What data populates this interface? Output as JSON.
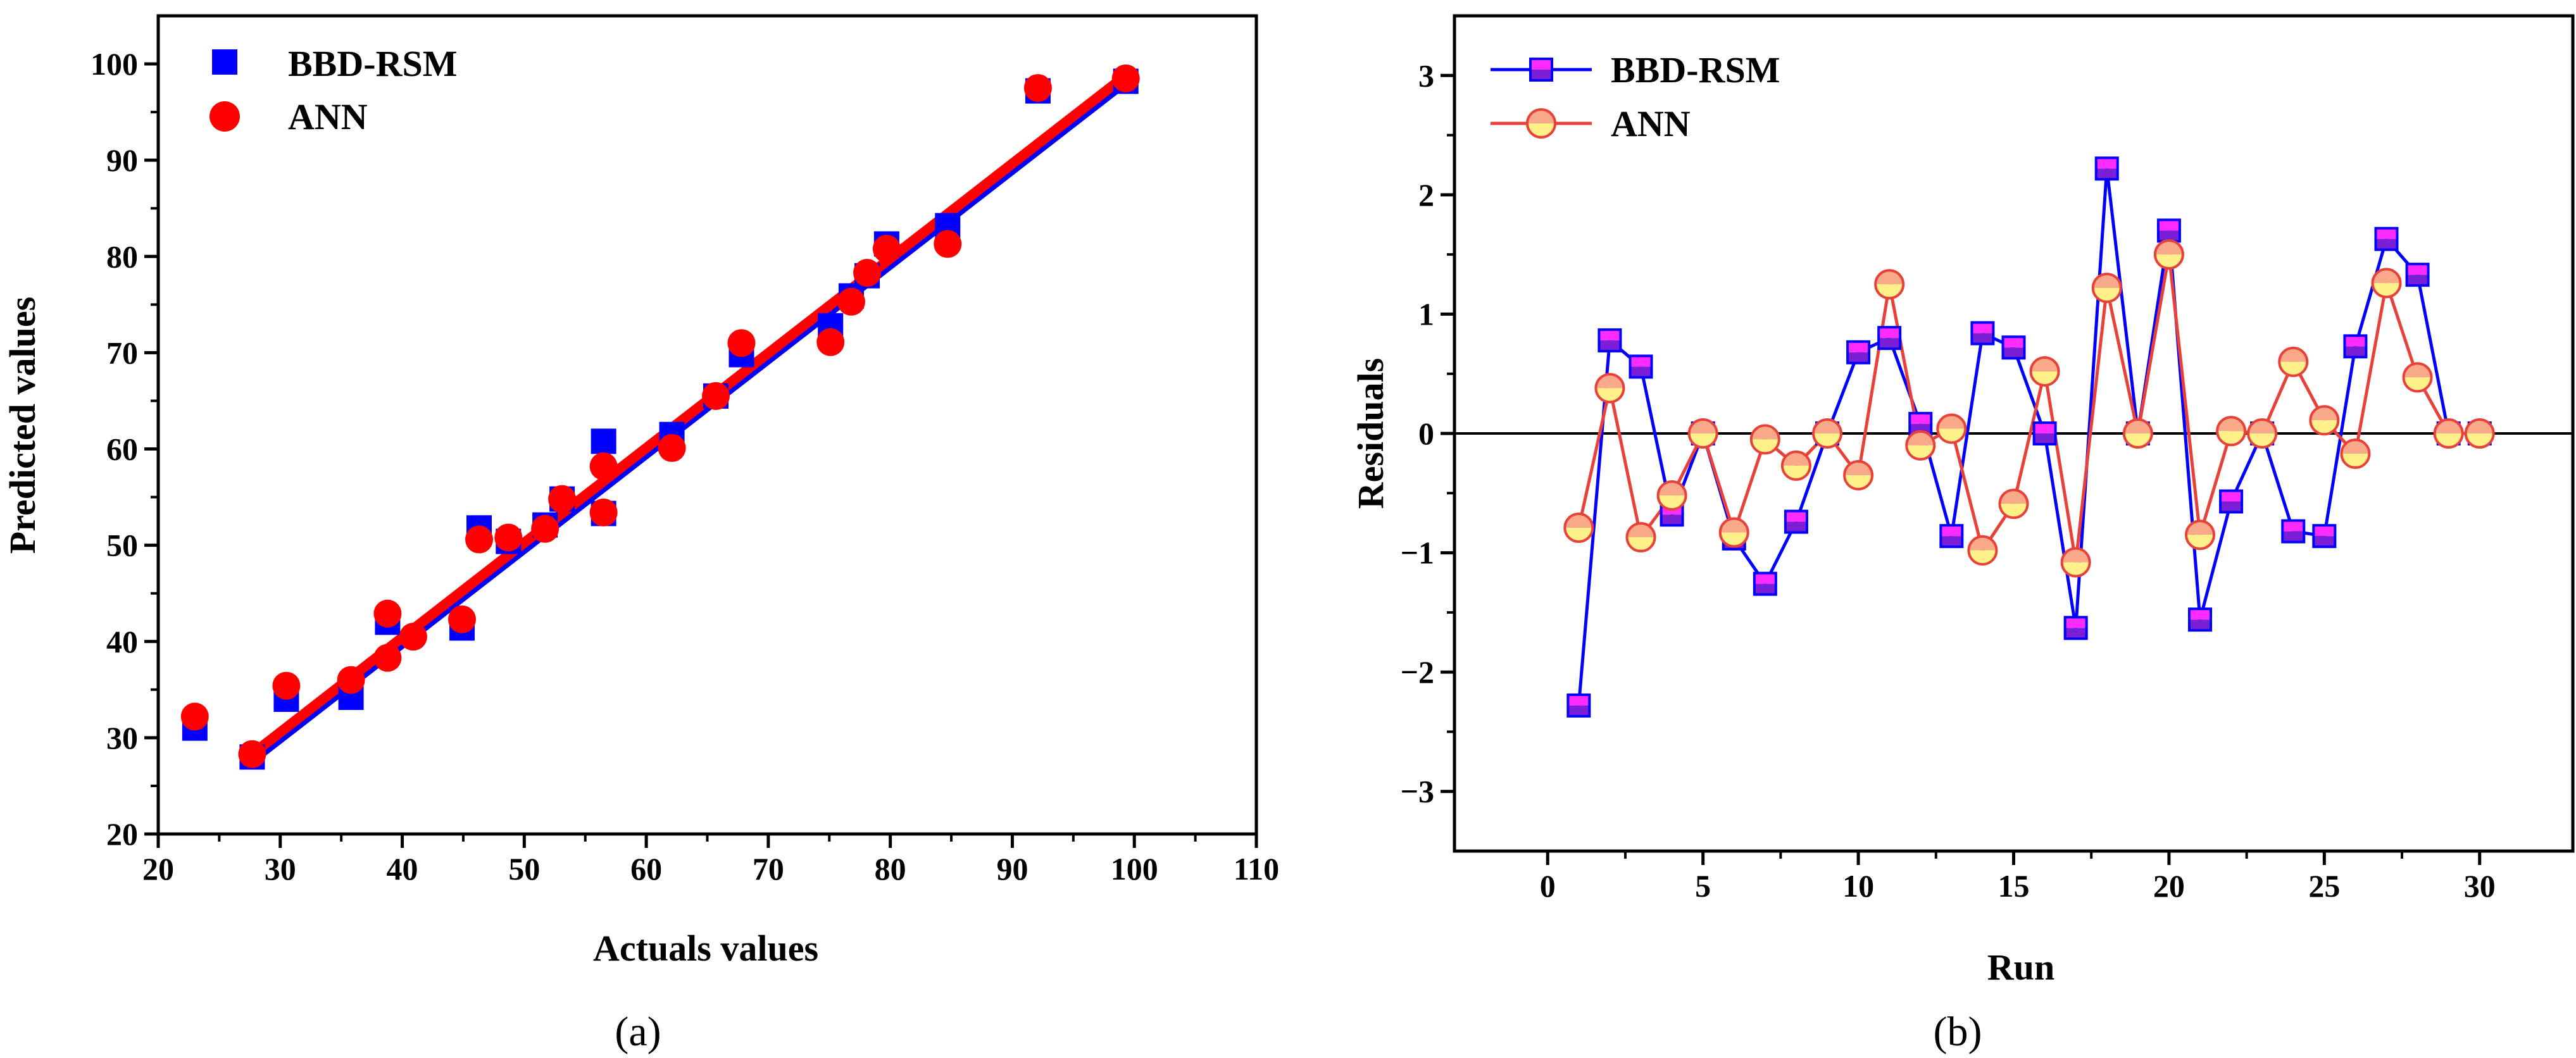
{
  "colors": {
    "bbd": "#0000ff",
    "ann": "#ff0000",
    "bbd_fill_top": "#ff2bff",
    "bbd_fill_bottom": "#7a1fd6",
    "ann_fill_top": "#f7a98a",
    "ann_fill_bottom": "#fff08a",
    "ann_line": "#e8413a"
  },
  "chart_data": [
    {
      "type": "scatter",
      "panel_label": "(a)",
      "xlabel": "Actuals values",
      "ylabel": "Predicted values",
      "xlim": [
        20,
        110
      ],
      "ylim": [
        20,
        105
      ],
      "xticks": [
        20,
        30,
        40,
        50,
        60,
        70,
        80,
        90,
        100,
        110
      ],
      "yticks": [
        20,
        30,
        40,
        50,
        60,
        70,
        80,
        90,
        100
      ],
      "xtick_labels": [
        "20",
        "30",
        "40",
        "50",
        "60",
        "70",
        "80",
        "90",
        "100",
        "110"
      ],
      "ytick_labels": [
        "20",
        "30",
        "40",
        "50",
        "60",
        "70",
        "80",
        "90",
        "100"
      ],
      "legend_position": "top-left",
      "series": [
        {
          "name": "BBD-RSM",
          "marker": "square",
          "points": [
            [
              23,
              31
            ],
            [
              27.7,
              28
            ],
            [
              30.5,
              34
            ],
            [
              35.8,
              34.2
            ],
            [
              38.8,
              42
            ],
            [
              44.9,
              41.4
            ],
            [
              46.3,
              51.8
            ],
            [
              48.7,
              50.4
            ],
            [
              51.7,
              52.1
            ],
            [
              53.1,
              54.8
            ],
            [
              56.5,
              53.3
            ],
            [
              56.5,
              60.8
            ],
            [
              62.1,
              61.5
            ],
            [
              65.7,
              65.5
            ],
            [
              67.8,
              69.8
            ],
            [
              75.1,
              72.8
            ],
            [
              76.8,
              75.9
            ],
            [
              78.1,
              78
            ],
            [
              79.7,
              81.3
            ],
            [
              84.7,
              83.2
            ],
            [
              92.1,
              97.2
            ],
            [
              99.3,
              98.2
            ]
          ],
          "fit": [
            [
              27.7,
              27.7
            ],
            [
              99.3,
              98.2
            ]
          ]
        },
        {
          "name": "ANN",
          "marker": "circle",
          "points": [
            [
              23,
              32.2
            ],
            [
              27.7,
              28.3
            ],
            [
              30.5,
              35.4
            ],
            [
              35.8,
              36
            ],
            [
              38.8,
              38.3
            ],
            [
              38.8,
              42.9
            ],
            [
              40.9,
              40.5
            ],
            [
              44.9,
              42.3
            ],
            [
              46.3,
              50.6
            ],
            [
              48.7,
              50.8
            ],
            [
              51.7,
              51.7
            ],
            [
              53.1,
              54.8
            ],
            [
              56.5,
              53.4
            ],
            [
              56.5,
              58.2
            ],
            [
              62.1,
              60.1
            ],
            [
              65.7,
              65.5
            ],
            [
              67.8,
              71
            ],
            [
              75.1,
              71.1
            ],
            [
              76.8,
              75.3
            ],
            [
              78.1,
              78.3
            ],
            [
              79.7,
              80.8
            ],
            [
              84.7,
              81.3
            ],
            [
              92.1,
              97.5
            ],
            [
              99.3,
              98.5
            ]
          ],
          "fit": [
            [
              27.7,
              28.3
            ],
            [
              99.3,
              98.8
            ]
          ]
        }
      ]
    },
    {
      "type": "line",
      "panel_label": "(b)",
      "xlabel": "Run",
      "ylabel": "Residuals",
      "xlim": [
        -3,
        33
      ],
      "ylim": [
        -3.5,
        3.5
      ],
      "xticks": [
        0,
        5,
        10,
        15,
        20,
        25,
        30
      ],
      "yticks": [
        -3,
        -2,
        -1,
        0,
        1,
        2,
        3
      ],
      "xtick_labels": [
        "0",
        "5",
        "10",
        "15",
        "20",
        "25",
        "30"
      ],
      "ytick_labels": [
        "−3",
        "−2",
        "−1",
        "0",
        "1",
        "2",
        "3"
      ],
      "zero_line": true,
      "legend_position": "top-left",
      "x": [
        1,
        2,
        3,
        4,
        5,
        6,
        7,
        8,
        9,
        10,
        11,
        12,
        13,
        14,
        15,
        16,
        17,
        18,
        19,
        20,
        21,
        22,
        23,
        24,
        25,
        26,
        27,
        28,
        29,
        30
      ],
      "series": [
        {
          "name": "BBD-RSM",
          "marker": "square",
          "values": [
            -2.28,
            0.78,
            0.56,
            -0.68,
            0,
            -0.88,
            -1.26,
            -0.74,
            0,
            0.68,
            0.8,
            0.08,
            -0.86,
            0.84,
            0.72,
            0,
            -1.63,
            2.22,
            0,
            1.7,
            -1.56,
            -0.57,
            0,
            -0.82,
            -0.86,
            0.73,
            1.63,
            1.33,
            0,
            0
          ]
        },
        {
          "name": "ANN",
          "marker": "circle",
          "values": [
            -0.79,
            0.38,
            -0.87,
            -0.52,
            0,
            -0.83,
            -0.05,
            -0.27,
            0,
            -0.35,
            1.25,
            -0.1,
            0.04,
            -0.98,
            -0.59,
            0.52,
            -1.08,
            1.22,
            0,
            1.5,
            -0.85,
            0.02,
            0,
            0.6,
            0.11,
            -0.17,
            1.26,
            0.47,
            0,
            0
          ]
        }
      ]
    }
  ]
}
